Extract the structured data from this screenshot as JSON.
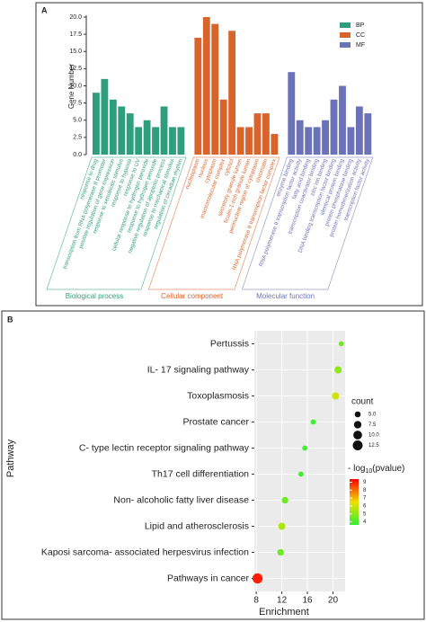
{
  "chart_data": [
    {
      "type": "bar",
      "panel": "A",
      "ylabel": "Gene Number",
      "categories": [
        "response to drug",
        "transcription from RNA polymerase II promoter",
        "positive regulation of gene expression",
        "response to xenobiotic stimulus",
        "response to hypoxia",
        "response to UV",
        "cellular response to hydrogen peroxide",
        "response to hydrogen peroxide",
        "negative regulation of apoptotic process",
        "response to mechanical stimulus",
        "regulation of circadian rhythm",
        "nucleoplasm",
        "nucleus",
        "cytoplasm",
        "macromolecular complex",
        "cytosol",
        "secretory granule lumen",
        "ficolin-1-rich granule lumen",
        "perinuclear region of cytoplasm",
        "chromatin",
        "RNA polymerase II transcription factor complex",
        "enzyme binding",
        "RNA polymerase II transcription factor activity",
        "fatty acid binding",
        "transcription coactivator binding",
        "zinc ion binding",
        "DNA binding transcription factor binding",
        "identical protein binding",
        "protein phosphatase binding",
        "protein homodimerization activity",
        "transcription factor activity"
      ],
      "series": [
        {
          "name": "BP",
          "group_label": "Biological process",
          "color": "#2e9e7c",
          "values": [
            9,
            11,
            8,
            7,
            6,
            4,
            5,
            4,
            7,
            4,
            4,
            null,
            null,
            null,
            null,
            null,
            null,
            null,
            null,
            null,
            null,
            null,
            null,
            null,
            null,
            null,
            null,
            null,
            null,
            null,
            null
          ]
        },
        {
          "name": "CC",
          "group_label": "Cellular component",
          "color": "#d9642b",
          "values": [
            null,
            null,
            null,
            null,
            null,
            null,
            null,
            null,
            null,
            null,
            null,
            17,
            20,
            19,
            8,
            18,
            4,
            4,
            6,
            6,
            3,
            null,
            null,
            null,
            null,
            null,
            null,
            null,
            null,
            null,
            null
          ]
        },
        {
          "name": "MF",
          "group_label": "Molecular function",
          "color": "#6c72b8",
          "values": [
            null,
            null,
            null,
            null,
            null,
            null,
            null,
            null,
            null,
            null,
            null,
            null,
            null,
            null,
            null,
            null,
            null,
            null,
            null,
            null,
            null,
            12,
            5,
            4,
            4,
            5,
            8,
            10,
            4,
            7,
            6
          ]
        }
      ],
      "ylim": [
        0,
        20
      ],
      "yticks": [
        {
          "value": 0,
          "label": "0.0"
        },
        {
          "value": 2.5,
          "label": "2.5"
        },
        {
          "value": 5,
          "label": "5.0"
        },
        {
          "value": 7.5,
          "label": "7.5"
        },
        {
          "value": 10,
          "label": "10.0"
        },
        {
          "value": 12.5,
          "label": "12.5"
        },
        {
          "value": 15,
          "label": "15.0"
        },
        {
          "value": 17.5,
          "label": "17.5"
        },
        {
          "value": 20,
          "label": "20.0"
        }
      ],
      "legend": "top-right"
    },
    {
      "type": "dotplot",
      "panel": "B",
      "xlabel": "Enrichment",
      "ylabel": "Pathway",
      "categories": [
        "Pertussis",
        "IL- 17 signaling pathway",
        "Toxoplasmosis",
        "Prostate cancer",
        "C- type lectin receptor signaling pathway",
        "Th17 cell differentiation",
        "Non- alcoholic fatty liver disease",
        "Lipid and atherosclerosis",
        "Kaposi sarcoma- associated herpesvirus infection",
        "Pathways in cancer"
      ],
      "values": [
        21.3,
        20.8,
        20.4,
        16.9,
        15.6,
        15.0,
        12.5,
        12.0,
        11.8,
        8.2
      ],
      "count": [
        4,
        7,
        7,
        4,
        4,
        4,
        6,
        7,
        6,
        13
      ],
      "neg_log10_pvalue": [
        4.5,
        5,
        6,
        3.8,
        3.8,
        3.8,
        4.5,
        5.5,
        4.5,
        9
      ],
      "xlim": [
        7.7,
        21.9
      ],
      "xticks": [
        8,
        12,
        16,
        20
      ],
      "size_title": "count",
      "size_ticks": [
        {
          "value": 5,
          "label": "5.0"
        },
        {
          "value": 7.5,
          "label": "7.5"
        },
        {
          "value": 10,
          "label": "10.0"
        },
        {
          "value": 12.5,
          "label": "12.5"
        }
      ],
      "color_title": [
        "- log",
        "10",
        "(pvalue)"
      ],
      "clim": [
        3.6,
        9.4
      ],
      "color_ticks": [
        4,
        5,
        6,
        7,
        8,
        9
      ],
      "colormap": [
        "#33ee33",
        "#f0e000",
        "#ff0000"
      ]
    }
  ]
}
